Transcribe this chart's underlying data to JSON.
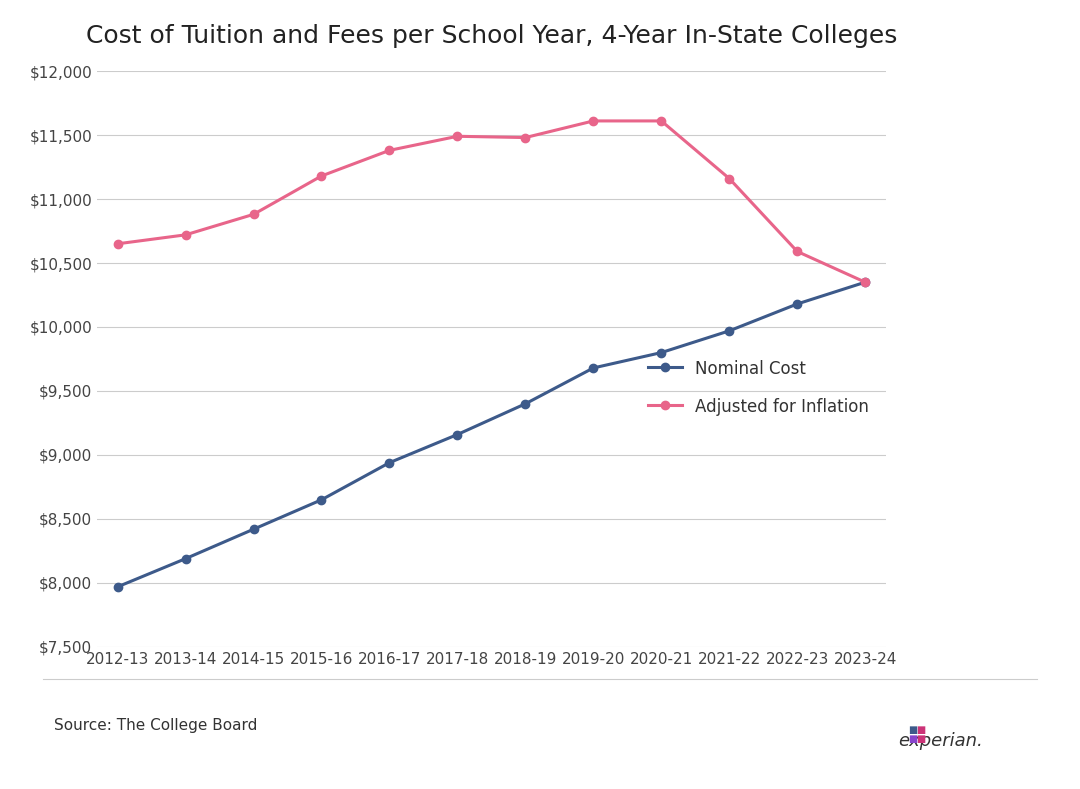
{
  "title": "Cost of Tuition and Fees per School Year, 4-Year In-State Colleges",
  "categories": [
    "2012-13",
    "2013-14",
    "2014-15",
    "2015-16",
    "2016-17",
    "2017-18",
    "2018-19",
    "2019-20",
    "2020-21",
    "2021-22",
    "2022-23",
    "2023-24"
  ],
  "nominal_cost": [
    7970,
    8190,
    8420,
    8650,
    8940,
    9160,
    9400,
    9680,
    9800,
    9970,
    10180,
    10350
  ],
  "adjusted_cost": [
    10650,
    10720,
    10880,
    11180,
    11380,
    11490,
    11480,
    11610,
    11610,
    11160,
    10590,
    10350
  ],
  "nominal_color": "#3d5a8a",
  "adjusted_color": "#e8658a",
  "ylim": [
    7500,
    12000
  ],
  "yticks": [
    7500,
    8000,
    8500,
    9000,
    9500,
    10000,
    10500,
    11000,
    11500,
    12000
  ],
  "legend_nominal": "Nominal Cost",
  "legend_adjusted": "Adjusted for Inflation",
  "source_text": "Source: The College Board",
  "background_color": "#ffffff",
  "grid_color": "#cccccc",
  "title_fontsize": 18,
  "tick_fontsize": 11,
  "legend_fontsize": 12,
  "source_fontsize": 11
}
